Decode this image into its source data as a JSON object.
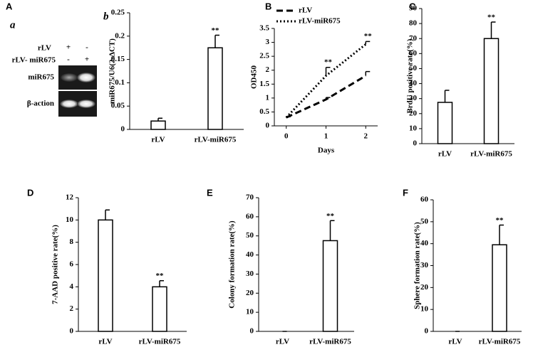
{
  "gel": {
    "panel_label": "A",
    "sub_label": "a",
    "rows": [
      {
        "name": "rLV",
        "lanes": [
          "+",
          "-"
        ]
      },
      {
        "name": "rLV- miR675",
        "lanes": [
          "-",
          "+"
        ]
      }
    ],
    "bands": [
      "miR675",
      "β-action"
    ]
  },
  "chart_data": [
    {
      "type": "bar",
      "sub_label": "b",
      "y_label": "miR675/U6(2-ΔCT)",
      "categories": [
        "rLV",
        "rLV-miR675"
      ],
      "values": [
        0.018,
        0.175
      ],
      "errors": [
        0.006,
        0.027
      ],
      "color": "#ffffff",
      "ylim": [
        0,
        0.25
      ],
      "yticks": [
        0,
        0.05,
        0.1,
        0.15,
        0.2,
        0.25
      ],
      "annotations": [
        {
          "text": "**",
          "category": "rLV-miR675"
        }
      ]
    },
    {
      "type": "line",
      "panel_label": "B",
      "x_label": "Days",
      "y_label": "OD450",
      "x": [
        0,
        1,
        2
      ],
      "series": [
        {
          "name": "rLV",
          "color": "#000000",
          "line_style": "dashed",
          "values": [
            0.3,
            0.95,
            1.8
          ],
          "errors": [
            0.03,
            0.07,
            0.15
          ]
        },
        {
          "name": "rLV-miR675",
          "color": "#000000",
          "line_style": "dotted",
          "values": [
            0.3,
            1.8,
            2.93
          ],
          "errors": [
            0.03,
            0.3,
            0.1
          ]
        }
      ],
      "xlim": [
        -0.3,
        2.3
      ],
      "xticks": [
        0,
        1,
        2
      ],
      "ylim": [
        0,
        3.5
      ],
      "yticks": [
        0,
        0.5,
        1,
        1.5,
        2,
        2.5,
        3,
        3.5
      ],
      "annotations": [
        {
          "text": "**",
          "x": 1,
          "series": "rLV-miR675"
        },
        {
          "text": "**",
          "x": 2,
          "series": "rLV-miR675"
        }
      ]
    },
    {
      "type": "bar",
      "panel_label": "C",
      "y_label": "BrdU positive rate(%)",
      "categories": [
        "rLV",
        "rLV-miR675"
      ],
      "values": [
        27.5,
        70
      ],
      "errors": [
        8,
        11
      ],
      "color": "#ffffff",
      "ylim": [
        0,
        90
      ],
      "yticks": [
        0,
        10,
        20,
        30,
        40,
        50,
        60,
        70,
        80,
        90
      ],
      "annotations": [
        {
          "text": "**",
          "category": "rLV-miR675"
        }
      ]
    },
    {
      "type": "bar",
      "panel_label": "D",
      "y_label": "7-AAD positive rate(%)",
      "categories": [
        "rLV",
        "rLV-miR675"
      ],
      "values": [
        10,
        4
      ],
      "errors": [
        0.9,
        0.55
      ],
      "color": "#ffffff",
      "ylim": [
        0,
        12
      ],
      "yticks": [
        0,
        2,
        4,
        6,
        8,
        10,
        12
      ],
      "annotations": [
        {
          "text": "**",
          "category": "rLV-miR675"
        }
      ]
    },
    {
      "type": "bar",
      "panel_label": "E",
      "y_label": "Colony formation rate(%)",
      "categories": [
        "rLV",
        "rLV-miR675"
      ],
      "values": [
        0,
        47.5
      ],
      "errors": [
        0,
        10.5
      ],
      "color": "#ffffff",
      "ylim": [
        0,
        70
      ],
      "yticks": [
        0,
        10,
        20,
        30,
        40,
        50,
        60,
        70
      ],
      "annotations": [
        {
          "text": "**",
          "category": "rLV-miR675"
        }
      ]
    },
    {
      "type": "bar",
      "panel_label": "F",
      "y_label": "Sphere formation rate(%)",
      "categories": [
        "rLV",
        "rLV-miR675"
      ],
      "values": [
        0,
        39.5
      ],
      "errors": [
        0,
        9
      ],
      "color": "#ffffff",
      "ylim": [
        0,
        60
      ],
      "yticks": [
        0,
        10,
        20,
        30,
        40,
        50,
        60
      ],
      "annotations": [
        {
          "text": "**",
          "category": "rLV-miR675"
        }
      ]
    }
  ]
}
